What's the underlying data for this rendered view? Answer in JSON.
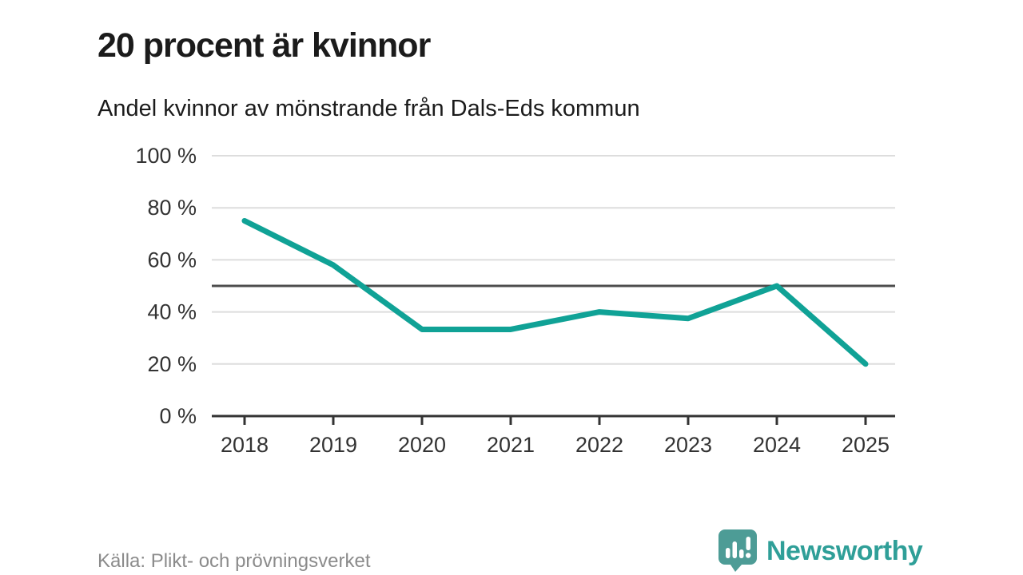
{
  "header": {
    "title": "20 procent är kvinnor",
    "subtitle": "Andel kvinnor av mönstrande från Dals-Eds kommun"
  },
  "chart_data": {
    "type": "line",
    "title": "20 procent är kvinnor",
    "subtitle": "Andel kvinnor av mönstrande från Dals-Eds kommun",
    "categories": [
      "2018",
      "2019",
      "2020",
      "2021",
      "2022",
      "2023",
      "2024",
      "2025"
    ],
    "series": [
      {
        "name": "Andel kvinnor av mönstrande",
        "values": [
          75,
          58,
          33.3,
          33.3,
          40,
          37.5,
          50,
          20
        ]
      }
    ],
    "unit": "%",
    "xlabel": "",
    "ylabel": "",
    "ylim": [
      0,
      100
    ],
    "y_ticks": [
      0,
      20,
      40,
      60,
      80,
      100
    ],
    "y_tick_labels": [
      "0 %",
      "20 %",
      "40 %",
      "60 %",
      "80 %",
      "100 %"
    ],
    "reference_line_value": 50,
    "grid": "horizontal",
    "legend_position": "none",
    "colors": {
      "line": "#10a296",
      "gridline": "#dddddd",
      "reference_line": "#4d4d4d",
      "axis": "#333333",
      "tick_label": "#333333"
    }
  },
  "footer": {
    "source": "Källa: Plikt- och prövningsverket",
    "brand": {
      "name": "Newsworthy",
      "icon": "bar-chart-speech-bubble-icon",
      "bubble_color": "#4d9c96",
      "text_color": "#2f9f98"
    }
  }
}
